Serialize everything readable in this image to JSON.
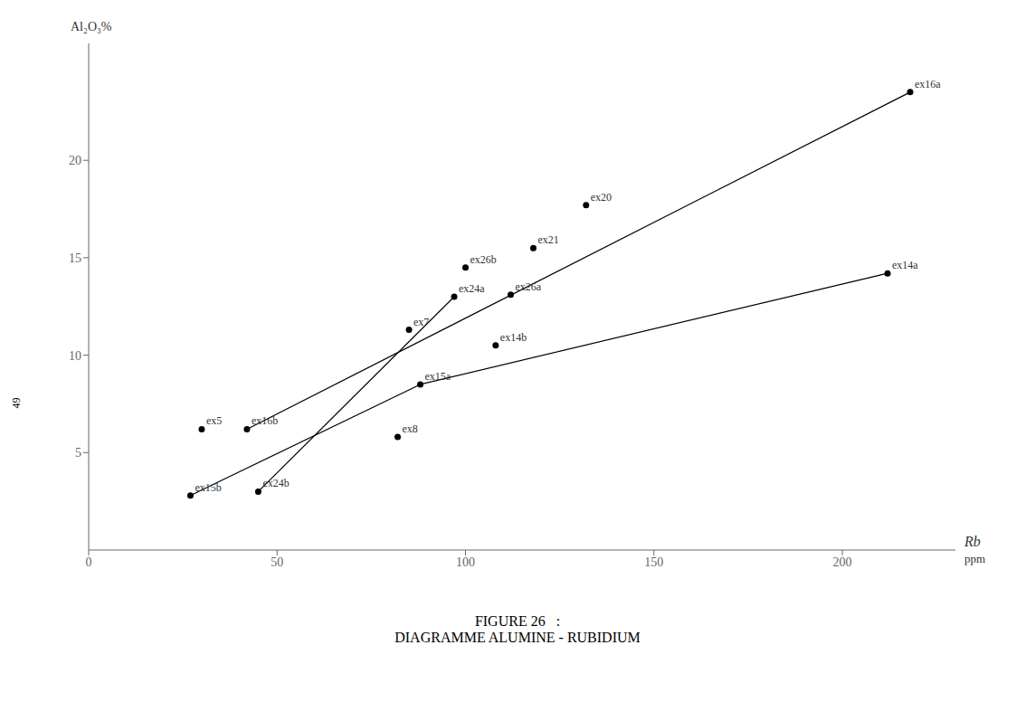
{
  "chart_data": {
    "type": "scatter",
    "title": "FIGURE 26   :\nDIAGRAMME ALUMINE - RUBIDIUM",
    "x_label": "Rb",
    "y_label": "Al₂O₃%",
    "annotations": [
      "ppm",
      "49"
    ],
    "xlim": [
      0,
      230
    ],
    "ylim": [
      0,
      26
    ],
    "xticks": [
      0,
      50,
      100,
      150,
      200
    ],
    "yticks": [
      5,
      10,
      15,
      20
    ],
    "grid": false,
    "points": [
      {
        "label": "ex5",
        "x": 30,
        "y": 6.2
      },
      {
        "label": "ex7",
        "x": 85,
        "y": 11.3
      },
      {
        "label": "ex8",
        "x": 82,
        "y": 5.8
      },
      {
        "label": "ex14a",
        "x": 212,
        "y": 14.2
      },
      {
        "label": "ex14b",
        "x": 108,
        "y": 10.5
      },
      {
        "label": "ex15a",
        "x": 88,
        "y": 8.5
      },
      {
        "label": "ex15b",
        "x": 27,
        "y": 2.8
      },
      {
        "label": "ex16a",
        "x": 218,
        "y": 23.5
      },
      {
        "label": "ex16b",
        "x": 42,
        "y": 6.2
      },
      {
        "label": "ex20",
        "x": 132,
        "y": 17.7
      },
      {
        "label": "ex21",
        "x": 118,
        "y": 15.5
      },
      {
        "label": "ex24a",
        "x": 97,
        "y": 13.0
      },
      {
        "label": "ex24b",
        "x": 45,
        "y": 3.0
      },
      {
        "label": "ex26a",
        "x": 112,
        "y": 13.1
      },
      {
        "label": "ex26b",
        "x": 100,
        "y": 14.5
      }
    ],
    "lines": [
      {
        "x": [
          27,
          88
        ],
        "y": [
          2.8,
          8.5
        ]
      },
      {
        "x": [
          45,
          97
        ],
        "y": [
          3.0,
          13.0
        ]
      },
      {
        "x": [
          42,
          218
        ],
        "y": [
          6.2,
          23.5
        ]
      },
      {
        "x": [
          88,
          212
        ],
        "y": [
          8.5,
          14.2
        ]
      }
    ]
  }
}
